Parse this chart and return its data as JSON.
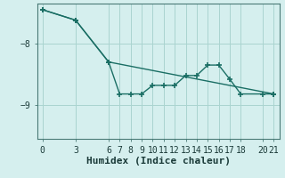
{
  "xlabel": "Humidex (Indice chaleur)",
  "background_color": "#d5efee",
  "line_color": "#1a6e64",
  "grid_color": "#aad4d0",
  "xlim": [
    -0.5,
    21.5
  ],
  "ylim": [
    -9.55,
    -7.35
  ],
  "yticks": [
    -9,
    -8
  ],
  "xticks": [
    0,
    3,
    6,
    7,
    8,
    9,
    10,
    11,
    12,
    13,
    14,
    15,
    16,
    17,
    18,
    20,
    21
  ],
  "line1_x": [
    0,
    3,
    6,
    7,
    8,
    9,
    10,
    11,
    12,
    13,
    14,
    15,
    16,
    17,
    18,
    20,
    21
  ],
  "line1_y": [
    -7.45,
    -7.62,
    -8.3,
    -8.82,
    -8.82,
    -8.82,
    -8.68,
    -8.68,
    -8.68,
    -8.52,
    -8.52,
    -8.35,
    -8.35,
    -8.58,
    -8.82,
    -8.82,
    -8.82
  ],
  "line2_x": [
    0,
    3,
    6,
    21
  ],
  "line2_y": [
    -7.45,
    -7.62,
    -8.3,
    -8.82
  ],
  "marker_size": 4,
  "line_width": 1.0,
  "xlabel_fontsize": 8,
  "tick_fontsize": 7
}
